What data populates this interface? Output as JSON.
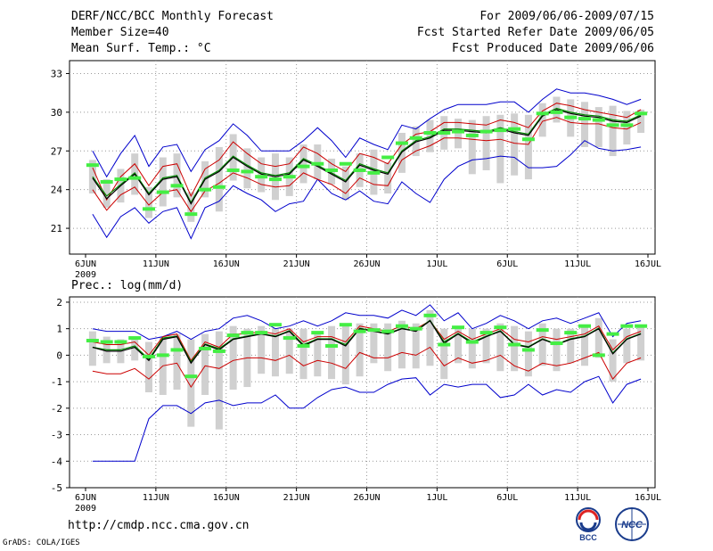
{
  "header": {
    "title": "DERF/NCC/BCC Monthly Forecast",
    "member_size": "Member Size=40",
    "variable": "Mean Surf. Temp.: °C",
    "period": "For 2009/06/06-2009/07/15",
    "start_date": "Fcst Started Refer Date 2009/06/05",
    "produced_date": "Fcst Produced Date 2009/06/06"
  },
  "footer": {
    "url": "http://cmdp.ncc.cma.gov.cn",
    "grads": "GrADS: COLA/IGES",
    "logo_bcc": "BCC",
    "logo_ncc": "NCC"
  },
  "colors": {
    "upper_envelope": "#0000cc",
    "lower_envelope": "#0000cc",
    "spread": "#cc0000",
    "mean": "#000000",
    "median": "#008800",
    "climatology": "#44ee44",
    "ensemble_bar": "#d0d0d0",
    "grid": "#999999"
  },
  "chart_data": [
    {
      "type": "line",
      "title": "Mean Surf. Temp.: °C",
      "x_label_year": "2009",
      "x_tick_labels": [
        "6JUN",
        "11JUN",
        "16JUN",
        "21JUN",
        "26JUN",
        "1JUL",
        "6JUL",
        "11JUL",
        "16JUL"
      ],
      "x": [
        0,
        1,
        2,
        3,
        4,
        5,
        6,
        7,
        8,
        9,
        10,
        11,
        12,
        13,
        14,
        15,
        16,
        17,
        18,
        19,
        20,
        21,
        22,
        23,
        24,
        25,
        26,
        27,
        28,
        29,
        30,
        31,
        32,
        33,
        34,
        35,
        36,
        37,
        38,
        39
      ],
      "ylim": [
        19,
        34
      ],
      "y_ticks": [
        21,
        24,
        27,
        30,
        33
      ],
      "series": [
        {
          "name": "max",
          "values": [
            22.1,
            20.3,
            21.9,
            22.6,
            21.4,
            22.3,
            22.6,
            20.2,
            22.6,
            23.1,
            24.3,
            23.7,
            23.2,
            22.3,
            22.9,
            23.1,
            24.8,
            23.7,
            23.2,
            23.9,
            23.1,
            22.9,
            24.6,
            23.7,
            23.0,
            24.8,
            25.8,
            26.3,
            26.4,
            26.6,
            26.5,
            25.7,
            25.7,
            25.8,
            26.7,
            27.8,
            27.2,
            27.0,
            27.1,
            27.3
          ],
          "role": "lower_envelope"
        },
        {
          "name": "upper",
          "values": [
            27.0,
            25.0,
            26.8,
            28.2,
            25.8,
            27.3,
            27.5,
            25.4,
            27.1,
            27.8,
            29.1,
            28.2,
            27.0,
            27.0,
            27.0,
            27.8,
            28.8,
            27.8,
            26.5,
            28.0,
            27.5,
            27.1,
            29.0,
            28.7,
            29.5,
            30.2,
            30.6,
            30.6,
            30.6,
            30.8,
            30.8,
            30.0,
            31.0,
            31.8,
            31.5,
            31.5,
            31.3,
            31.0,
            30.6,
            31.0
          ],
          "role": "upper_envelope"
        },
        {
          "name": "spread_hi",
          "values": [
            25.7,
            23.2,
            25.0,
            26.0,
            24.3,
            25.8,
            26.0,
            23.5,
            25.6,
            26.3,
            27.7,
            26.8,
            26.0,
            25.8,
            26.0,
            27.3,
            26.8,
            26.0,
            25.4,
            26.8,
            26.5,
            26.0,
            27.5,
            28.3,
            28.5,
            29.2,
            29.2,
            29.1,
            29.0,
            29.4,
            29.2,
            28.8,
            30.1,
            30.7,
            30.5,
            30.2,
            30.0,
            29.8,
            29.6,
            30.2
          ],
          "role": "spread"
        },
        {
          "name": "spread_lo",
          "values": [
            24.0,
            22.4,
            23.6,
            24.2,
            22.8,
            23.8,
            24.0,
            22.3,
            23.9,
            24.5,
            25.3,
            24.9,
            24.4,
            24.2,
            24.3,
            25.3,
            24.8,
            24.4,
            23.7,
            24.9,
            24.4,
            24.3,
            26.3,
            27.0,
            27.4,
            28.0,
            28.0,
            27.9,
            27.8,
            27.9,
            27.6,
            27.5,
            29.3,
            29.6,
            29.2,
            29.1,
            29.1,
            28.8,
            28.7,
            29.2
          ],
          "role": "spread"
        },
        {
          "name": "mean",
          "values": [
            24.9,
            23.3,
            24.3,
            25.2,
            23.6,
            24.8,
            25.0,
            22.9,
            24.8,
            25.4,
            26.5,
            25.8,
            25.2,
            25.0,
            25.2,
            26.3,
            25.8,
            25.2,
            24.6,
            25.9,
            25.5,
            25.2,
            26.9,
            27.7,
            28.0,
            28.6,
            28.6,
            28.5,
            28.4,
            28.7,
            28.4,
            28.2,
            29.7,
            30.2,
            29.9,
            29.7,
            29.6,
            29.3,
            29.2,
            29.7
          ],
          "role": "mean"
        },
        {
          "name": "median",
          "values": [
            25.0,
            23.5,
            24.4,
            25.3,
            23.7,
            24.9,
            25.1,
            23.0,
            24.9,
            25.5,
            26.6,
            25.9,
            25.3,
            25.1,
            25.3,
            26.4,
            25.9,
            25.3,
            24.7,
            26.0,
            25.6,
            25.3,
            27.0,
            27.8,
            28.1,
            28.7,
            28.7,
            28.6,
            28.5,
            28.8,
            28.5,
            28.3,
            29.8,
            30.3,
            30.0,
            29.8,
            29.7,
            29.4,
            29.3,
            29.8
          ],
          "role": "median"
        },
        {
          "name": "climatology",
          "values": [
            25.9,
            24.6,
            24.8,
            24.9,
            22.5,
            23.8,
            24.3,
            22.1,
            24.0,
            24.2,
            25.5,
            25.4,
            25.0,
            24.8,
            25.0,
            25.8,
            26.0,
            25.5,
            26.0,
            25.5,
            25.3,
            26.5,
            27.6,
            28.0,
            28.4,
            28.4,
            28.5,
            28.2,
            28.5,
            28.6,
            28.7,
            27.9,
            29.9,
            30.0,
            29.6,
            29.5,
            29.4,
            29.0,
            29.0,
            29.9
          ],
          "role": "climatology"
        },
        {
          "name": "ens_top",
          "values": [
            26.3,
            24.8,
            25.6,
            26.8,
            24.2,
            26.5,
            26.8,
            23.8,
            26.2,
            27.3,
            28.3,
            27.2,
            26.5,
            26.8,
            26.5,
            27.5,
            27.5,
            26.4,
            25.8,
            26.8,
            27.1,
            26.1,
            28.4,
            28.9,
            29.4,
            29.7,
            29.5,
            29.4,
            29.7,
            29.8,
            29.9,
            29.8,
            30.7,
            31.2,
            31.0,
            30.8,
            30.4,
            30.5,
            30.1,
            30.2
          ],
          "role": "bar_top"
        },
        {
          "name": "ens_bot",
          "values": [
            23.7,
            22.6,
            23.0,
            23.6,
            21.8,
            22.7,
            23.4,
            21.5,
            23.4,
            22.3,
            24.7,
            24.1,
            23.8,
            23.2,
            23.5,
            24.5,
            24.8,
            24.4,
            23.2,
            24.2,
            23.6,
            23.7,
            25.3,
            26.6,
            26.9,
            27.1,
            27.2,
            25.2,
            25.5,
            24.5,
            25.1,
            24.8,
            28.1,
            29.2,
            28.1,
            27.3,
            27.3,
            26.6,
            27.5,
            28.4
          ],
          "role": "bar_bottom"
        }
      ]
    },
    {
      "type": "line",
      "title": "Prec.: log(mm/d)",
      "x_label_year": "2009",
      "x_tick_labels": [
        "6JUN",
        "11JUN",
        "16JUN",
        "21JUN",
        "26JUN",
        "1JUL",
        "6JUL",
        "11JUL",
        "16JUL"
      ],
      "x": [
        0,
        1,
        2,
        3,
        4,
        5,
        6,
        7,
        8,
        9,
        10,
        11,
        12,
        13,
        14,
        15,
        16,
        17,
        18,
        19,
        20,
        21,
        22,
        23,
        24,
        25,
        26,
        27,
        28,
        29,
        30,
        31,
        32,
        33,
        34,
        35,
        36,
        37,
        38,
        39
      ],
      "ylim": [
        -5,
        2.2
      ],
      "y_ticks": [
        -5,
        -4,
        -3,
        -2,
        -1,
        0,
        1,
        2
      ],
      "series": [
        {
          "name": "lower_env",
          "values": [
            -4.0,
            -4.0,
            -4.0,
            -4.0,
            -2.4,
            -1.9,
            -1.9,
            -2.2,
            -1.8,
            -1.7,
            -1.9,
            -1.8,
            -1.8,
            -1.5,
            -2.0,
            -2.0,
            -1.6,
            -1.3,
            -1.2,
            -1.4,
            -1.4,
            -1.1,
            -0.9,
            -0.85,
            -1.5,
            -1.1,
            -1.2,
            -1.1,
            -1.1,
            -1.6,
            -1.5,
            -1.1,
            -1.5,
            -1.3,
            -1.4,
            -1.0,
            -0.8,
            -1.8,
            -1.1,
            -0.9
          ],
          "role": "lower_envelope"
        },
        {
          "name": "upper_env",
          "values": [
            1.0,
            0.9,
            0.9,
            0.9,
            0.6,
            0.7,
            0.9,
            0.6,
            0.9,
            1.0,
            1.4,
            1.5,
            1.3,
            1.0,
            1.1,
            1.3,
            1.1,
            1.3,
            1.6,
            1.5,
            1.5,
            1.4,
            1.7,
            1.5,
            1.9,
            1.3,
            1.6,
            1.0,
            1.2,
            1.5,
            1.3,
            1.0,
            1.3,
            1.4,
            1.2,
            1.4,
            1.6,
            0.7,
            1.2,
            1.3
          ],
          "role": "upper_envelope"
        },
        {
          "name": "spread_hi",
          "values": [
            0.5,
            0.4,
            0.4,
            0.5,
            0.0,
            0.7,
            0.8,
            -0.2,
            0.5,
            0.3,
            0.8,
            0.8,
            0.9,
            0.8,
            1.0,
            0.5,
            0.7,
            0.7,
            0.5,
            1.1,
            1.0,
            0.9,
            1.1,
            1.0,
            1.3,
            0.6,
            0.9,
            0.6,
            0.8,
            1.0,
            0.6,
            0.5,
            0.7,
            0.6,
            0.7,
            0.8,
            1.1,
            0.2,
            0.7,
            0.9
          ],
          "role": "spread"
        },
        {
          "name": "spread_lo",
          "values": [
            -0.6,
            -0.7,
            -0.7,
            -0.5,
            -0.9,
            -0.4,
            -0.3,
            -1.2,
            -0.4,
            -0.5,
            -0.2,
            -0.1,
            -0.1,
            -0.2,
            0.0,
            -0.4,
            -0.2,
            -0.3,
            -0.5,
            0.1,
            -0.1,
            -0.1,
            0.1,
            0.0,
            0.3,
            -0.4,
            -0.1,
            -0.3,
            -0.2,
            0.0,
            -0.4,
            -0.6,
            -0.3,
            -0.4,
            -0.3,
            -0.1,
            0.1,
            -0.9,
            -0.3,
            -0.1
          ],
          "role": "spread"
        },
        {
          "name": "mean",
          "values": [
            0.3,
            0.15,
            0.15,
            0.3,
            -0.2,
            0.6,
            0.7,
            -0.3,
            0.4,
            0.2,
            0.6,
            0.7,
            0.8,
            0.7,
            0.9,
            0.35,
            0.6,
            0.6,
            0.35,
            1.0,
            0.9,
            0.8,
            1.0,
            0.9,
            1.3,
            0.45,
            0.8,
            0.45,
            0.7,
            0.9,
            0.4,
            0.3,
            0.6,
            0.4,
            0.6,
            0.7,
            1.0,
            0.05,
            0.6,
            0.8
          ],
          "role": "mean"
        },
        {
          "name": "median",
          "values": [
            0.3,
            0.2,
            0.2,
            0.35,
            -0.15,
            0.65,
            0.72,
            -0.25,
            0.42,
            0.25,
            0.62,
            0.72,
            0.82,
            0.72,
            0.92,
            0.4,
            0.62,
            0.62,
            0.4,
            1.02,
            0.92,
            0.82,
            1.02,
            0.92,
            1.32,
            0.5,
            0.82,
            0.5,
            0.72,
            0.92,
            0.42,
            0.32,
            0.62,
            0.42,
            0.62,
            0.72,
            1.02,
            0.08,
            0.62,
            0.82
          ],
          "role": "median"
        },
        {
          "name": "climatology",
          "values": [
            0.55,
            0.5,
            0.5,
            0.65,
            -0.05,
            0.0,
            0.2,
            -0.8,
            0.25,
            0.15,
            0.75,
            0.85,
            0.85,
            1.15,
            0.65,
            0.35,
            0.85,
            0.35,
            1.15,
            0.9,
            0.95,
            0.9,
            1.1,
            1.0,
            1.5,
            0.4,
            1.05,
            0.5,
            0.85,
            1.05,
            0.4,
            0.2,
            0.95,
            0.45,
            0.85,
            1.1,
            0.0,
            0.8,
            1.1,
            1.1
          ],
          "role": "climatology"
        },
        {
          "name": "ens_top",
          "values": [
            0.9,
            0.7,
            0.6,
            0.7,
            0.5,
            0.7,
            0.8,
            0.6,
            0.8,
            0.9,
            1.1,
            1.0,
            1.1,
            1.0,
            1.0,
            1.0,
            0.9,
            1.1,
            1.2,
            1.2,
            1.2,
            1.2,
            1.3,
            1.2,
            1.7,
            1.0,
            1.1,
            1.0,
            1.0,
            1.2,
            1.1,
            0.9,
            1.2,
            1.0,
            1.0,
            1.1,
            1.4,
            0.6,
            1.0,
            1.1
          ],
          "role": "bar_top"
        },
        {
          "name": "ens_bot",
          "values": [
            -0.4,
            -0.3,
            -0.3,
            -0.2,
            -1.4,
            -1.5,
            -1.3,
            -2.7,
            -1.5,
            -2.8,
            -1.3,
            -1.2,
            -0.7,
            -0.8,
            -0.7,
            -0.9,
            -0.8,
            -0.9,
            -1.1,
            -0.8,
            -0.3,
            -0.6,
            -0.5,
            -0.5,
            -0.4,
            -0.9,
            -0.3,
            -0.5,
            -0.3,
            -0.6,
            -0.6,
            -0.8,
            -0.4,
            -0.6,
            -0.3,
            -0.4,
            -0.1,
            -1.0,
            -0.3,
            -0.2
          ],
          "role": "bar_bottom"
        }
      ]
    }
  ]
}
